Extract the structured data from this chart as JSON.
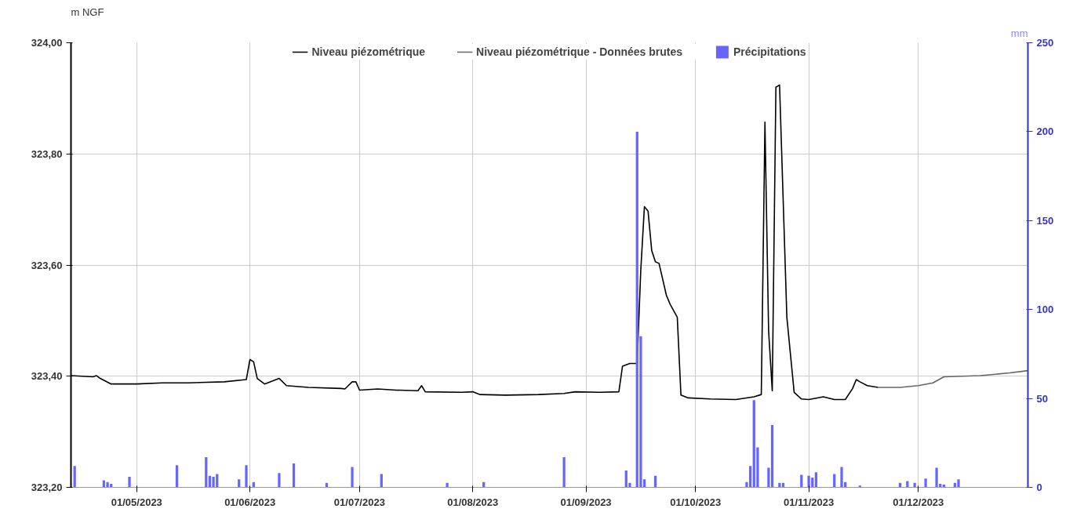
{
  "chart_data": {
    "type": "line",
    "ylabel": "m NGF",
    "y2label": "mm",
    "xlim": [
      "2023-04-13",
      "2023-12-31"
    ],
    "xticks": [
      {
        "value": "2023-05-01",
        "label": "01/05/2023"
      },
      {
        "value": "2023-06-01",
        "label": "01/06/2023"
      },
      {
        "value": "2023-07-01",
        "label": "01/07/2023"
      },
      {
        "value": "2023-08-01",
        "label": "01/08/2023"
      },
      {
        "value": "2023-09-01",
        "label": "01/09/2023"
      },
      {
        "value": "2023-10-01",
        "label": "01/10/2023"
      },
      {
        "value": "2023-11-01",
        "label": "01/11/2023"
      },
      {
        "value": "2023-12-01",
        "label": "01/12/2023"
      }
    ],
    "ylim": [
      323.2,
      324.0
    ],
    "yticks": [
      {
        "value": 323.2,
        "label": "323,20"
      },
      {
        "value": 323.4,
        "label": "323,40"
      },
      {
        "value": 323.6,
        "label": "323,60"
      },
      {
        "value": 323.8,
        "label": "323,80"
      },
      {
        "value": 324.0,
        "label": "324,00"
      }
    ],
    "y2lim": [
      0,
      250
    ],
    "y2ticks": [
      0,
      50,
      100,
      150,
      200,
      250
    ],
    "grid": true,
    "legend": "top",
    "line_style": "solid",
    "series": [
      {
        "name": "Niveau piézométrique",
        "color": "#000000",
        "x": [
          "2023-04-13",
          "2023-04-19",
          "2023-04-20",
          "2023-04-21",
          "2023-04-24",
          "2023-05-01",
          "2023-05-08",
          "2023-05-15",
          "2023-05-25",
          "2023-05-31",
          "2023-06-01",
          "2023-06-02",
          "2023-06-03",
          "2023-06-05",
          "2023-06-09",
          "2023-06-11",
          "2023-06-17",
          "2023-06-26",
          "2023-06-27",
          "2023-06-29",
          "2023-06-30",
          "2023-07-01",
          "2023-07-06",
          "2023-07-11",
          "2023-07-17",
          "2023-07-18",
          "2023-07-19",
          "2023-07-29",
          "2023-08-01",
          "2023-08-03",
          "2023-08-10",
          "2023-08-19",
          "2023-08-26",
          "2023-08-29",
          "2023-09-05",
          "2023-09-10",
          "2023-09-11",
          "2023-09-13",
          "2023-09-15",
          "2023-09-16",
          "2023-09-17",
          "2023-09-18",
          "2023-09-19",
          "2023-09-20",
          "2023-09-21",
          "2023-09-23",
          "2023-09-24",
          "2023-09-26",
          "2023-09-27",
          "2023-09-29",
          "2023-10-05",
          "2023-10-12",
          "2023-10-17",
          "2023-10-19",
          "2023-10-20",
          "2023-10-21",
          "2023-10-22",
          "2023-10-23",
          "2023-10-24",
          "2023-10-26",
          "2023-10-28",
          "2023-10-30",
          "2023-11-01",
          "2023-11-05",
          "2023-11-08",
          "2023-11-11",
          "2023-11-13",
          "2023-11-14",
          "2023-11-15",
          "2023-11-17",
          "2023-11-20"
        ],
        "values": [
          323.401,
          323.399,
          323.401,
          323.396,
          323.386,
          323.386,
          323.388,
          323.388,
          323.39,
          323.394,
          323.43,
          323.426,
          323.396,
          323.386,
          323.396,
          323.383,
          323.38,
          323.378,
          323.377,
          323.39,
          323.39,
          323.375,
          323.377,
          323.375,
          323.374,
          323.383,
          323.372,
          323.371,
          323.372,
          323.367,
          323.366,
          323.367,
          323.369,
          323.372,
          323.371,
          323.372,
          323.418,
          323.423,
          323.423,
          323.59,
          323.705,
          323.697,
          323.626,
          323.606,
          323.603,
          323.546,
          323.53,
          323.506,
          323.366,
          323.361,
          323.359,
          323.358,
          323.363,
          323.367,
          323.857,
          323.482,
          323.374,
          323.92,
          323.924,
          323.506,
          323.371,
          323.359,
          323.358,
          323.363,
          323.358,
          323.358,
          323.378,
          323.394,
          323.39,
          323.383,
          323.38
        ]
      },
      {
        "name": "Niveau piézométrique - Données brutes",
        "color": "#666666",
        "x": [
          "2023-11-20",
          "2023-11-26",
          "2023-12-01",
          "2023-12-05",
          "2023-12-08",
          "2023-12-18",
          "2023-12-26",
          "2023-12-31"
        ],
        "values": [
          323.38,
          323.38,
          323.383,
          323.388,
          323.399,
          323.401,
          323.406,
          323.41
        ]
      },
      {
        "name": "Précipitations",
        "type": "bar",
        "axis": "y2",
        "color": "#6666ff",
        "x": [
          "2023-04-14",
          "2023-04-22",
          "2023-04-23",
          "2023-04-24",
          "2023-04-29",
          "2023-05-12",
          "2023-05-20",
          "2023-05-21",
          "2023-05-22",
          "2023-05-23",
          "2023-05-29",
          "2023-05-31",
          "2023-06-02",
          "2023-06-09",
          "2023-06-13",
          "2023-06-22",
          "2023-06-29",
          "2023-07-07",
          "2023-07-25",
          "2023-08-04",
          "2023-08-26",
          "2023-09-12",
          "2023-09-13",
          "2023-09-15",
          "2023-09-16",
          "2023-09-17",
          "2023-09-20",
          "2023-10-15",
          "2023-10-16",
          "2023-10-17",
          "2023-10-18",
          "2023-10-21",
          "2023-10-22",
          "2023-10-24",
          "2023-10-25",
          "2023-10-30",
          "2023-11-01",
          "2023-11-02",
          "2023-11-03",
          "2023-11-08",
          "2023-11-10",
          "2023-11-11",
          "2023-11-15",
          "2023-11-26",
          "2023-11-28",
          "2023-11-30",
          "2023-12-03",
          "2023-12-06",
          "2023-12-07",
          "2023-12-08",
          "2023-12-11",
          "2023-12-12"
        ],
        "values": [
          12,
          4,
          3,
          2,
          6,
          12.5,
          17,
          6.5,
          6,
          7.5,
          4.5,
          12.5,
          3,
          8,
          13.5,
          2.5,
          11.5,
          7.5,
          2.5,
          3,
          17,
          9.5,
          2.5,
          200,
          85,
          4.5,
          6.5,
          3,
          12,
          49,
          22.5,
          11,
          35,
          2.5,
          2.5,
          7,
          6.5,
          5.5,
          8.5,
          7.5,
          11.5,
          3,
          1,
          2.5,
          3.5,
          2.5,
          5,
          11,
          2,
          1.5,
          2.5,
          4.5
        ]
      }
    ]
  }
}
